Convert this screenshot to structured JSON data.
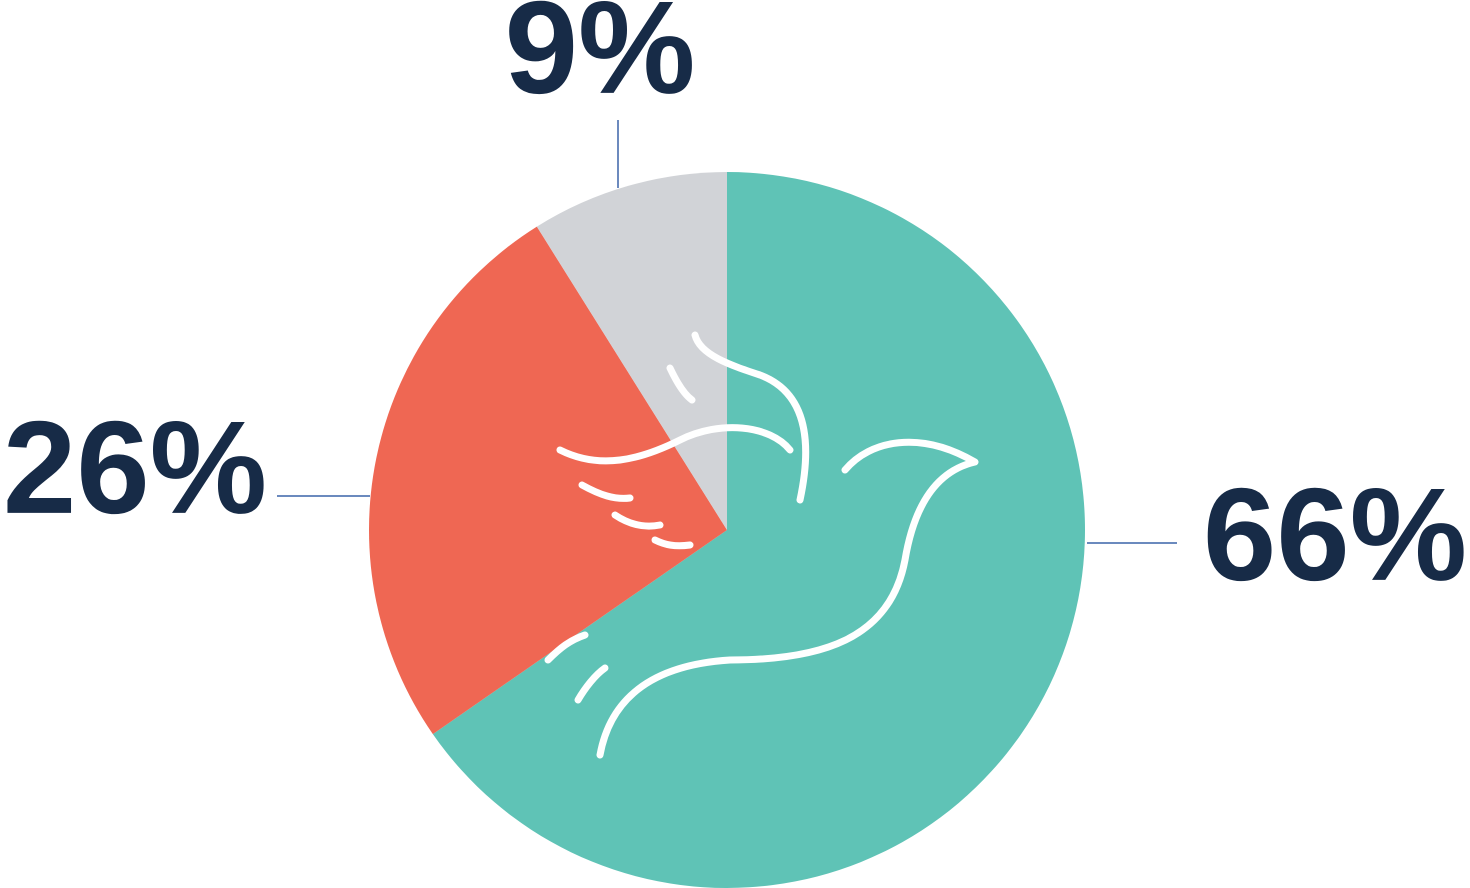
{
  "chart_data": {
    "type": "pie",
    "values": [
      66,
      26,
      9
    ],
    "value_labels": [
      "66%",
      "26%",
      "9%"
    ],
    "colors": [
      "#5fc3b6",
      "#ef6753",
      "#d1d3d7"
    ]
  }
}
